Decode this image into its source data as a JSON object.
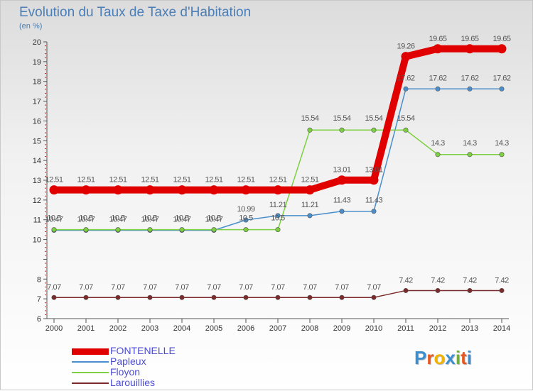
{
  "title": "Evolution du Taux de Taxe d'Habitation",
  "subtitle": "(en %)",
  "logo": {
    "text": [
      "P",
      "r",
      "o",
      "x",
      "i",
      "t",
      "i"
    ],
    "colors": [
      "#3b8fd0",
      "#e8561c",
      "#f0b400",
      "#3b8fd0",
      "#6ab52a",
      "#e8561c",
      "#3b8fd0"
    ]
  },
  "chart_data": {
    "type": "line",
    "title": "Evolution du Taux de Taxe d'Habitation",
    "ylabel": "(en %)",
    "xlabel": "",
    "ylim": [
      6,
      20
    ],
    "yticks": [
      6,
      7,
      8,
      10,
      11,
      12,
      13,
      14,
      15,
      16,
      17,
      18,
      19,
      20
    ],
    "grid": false,
    "legend_position": "bottom-left",
    "categories": [
      "2000",
      "2001",
      "2002",
      "2003",
      "2004",
      "2005",
      "2006",
      "2007",
      "2008",
      "2009",
      "2010",
      "2011",
      "2012",
      "2013",
      "2014"
    ],
    "series": [
      {
        "name": "FONTENELLE",
        "color": "#e00000",
        "values": [
          12.51,
          12.51,
          12.51,
          12.51,
          12.51,
          12.51,
          12.51,
          12.51,
          12.51,
          13.01,
          13.01,
          19.26,
          19.65,
          19.65,
          19.65
        ]
      },
      {
        "name": "Papleux",
        "color": "#4a8ecb",
        "values": [
          10.47,
          10.47,
          10.47,
          10.47,
          10.47,
          10.47,
          10.99,
          11.21,
          11.21,
          11.43,
          11.43,
          17.62,
          17.62,
          17.62,
          17.62
        ]
      },
      {
        "name": "Floyon",
        "color": "#7dd040",
        "values": [
          10.5,
          10.5,
          10.5,
          10.5,
          10.5,
          10.5,
          10.5,
          10.5,
          15.54,
          15.54,
          15.54,
          15.54,
          14.3,
          14.3,
          14.3
        ]
      },
      {
        "name": "Larouillies",
        "color": "#7a2a2a",
        "values": [
          7.07,
          7.07,
          7.07,
          7.07,
          7.07,
          7.07,
          7.07,
          7.07,
          7.07,
          7.07,
          7.07,
          7.42,
          7.42,
          7.42,
          7.42
        ]
      }
    ],
    "data_labels": {
      "FONTENELLE": [
        "12.51",
        "12.51",
        "12.51",
        "12.51",
        "12.51",
        "12.51",
        "12.51",
        "12.51",
        "12.51",
        "13.01",
        "13.01",
        "19.26",
        "19.65",
        "19.65",
        "19.65"
      ],
      "Papleux": [
        "10.47",
        "10.47",
        "10.47",
        "10.47",
        "10.47",
        "10.47",
        "10.99",
        "11.21",
        "11.21",
        "11.43",
        "11.43",
        "17.62",
        "17.62",
        "17.62",
        "17.62"
      ],
      "Floyon": [
        "10.5",
        "10.5",
        "10.5",
        "10.5",
        "10.5",
        "10.5",
        "10.5",
        "10.5",
        "15.54",
        "15.54",
        "15.54",
        "15.54",
        "14.3",
        "14.3",
        "14.3"
      ],
      "Larouillies": [
        "7.07",
        "7.07",
        "7.07",
        "7.07",
        "7.07",
        "7.07",
        "7.07",
        "7.07",
        "7.07",
        "7.07",
        "7.07",
        "7.42",
        "7.42",
        "7.42",
        "7.42"
      ]
    }
  }
}
